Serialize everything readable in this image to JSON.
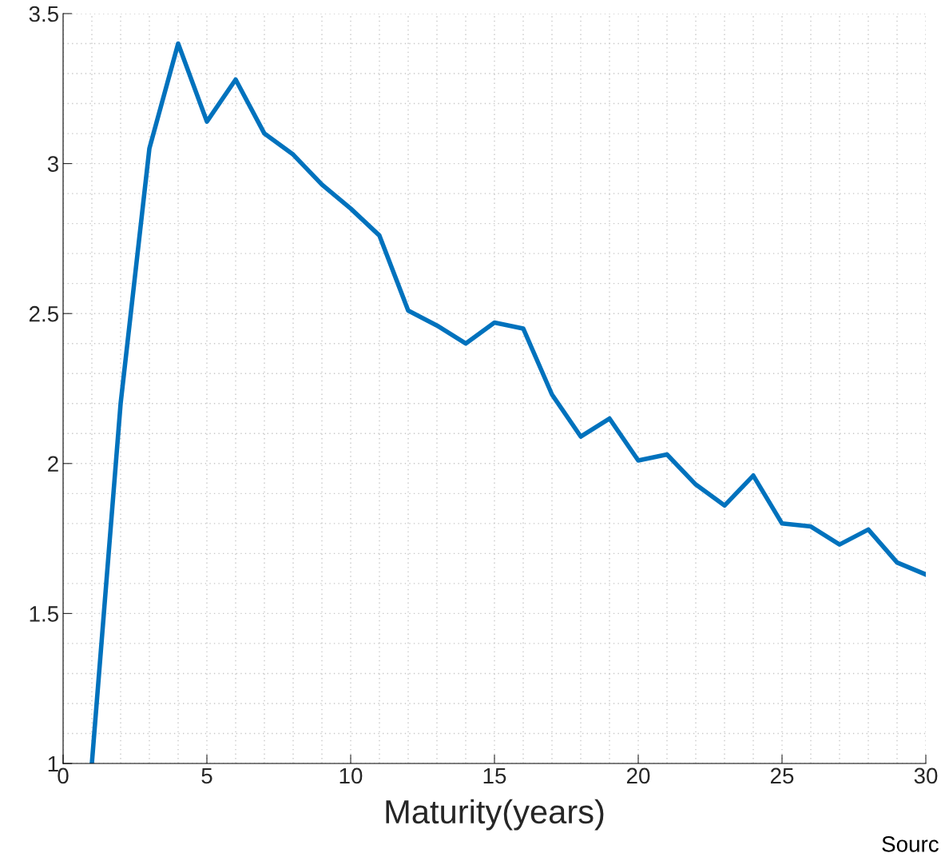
{
  "chart_data": {
    "type": "line",
    "xlabel": "Maturity(years)",
    "x": [
      1,
      2,
      3,
      4,
      5,
      6,
      7,
      8,
      9,
      10,
      11,
      12,
      13,
      14,
      15,
      16,
      17,
      18,
      19,
      20,
      21,
      22,
      23,
      24,
      25,
      26,
      27,
      28,
      29,
      30
    ],
    "series": [
      {
        "color": "#0072bd",
        "values": [
          1.0,
          2.2,
          3.05,
          3.4,
          3.14,
          3.28,
          3.1,
          3.03,
          2.93,
          2.85,
          2.76,
          2.51,
          2.46,
          2.4,
          2.47,
          2.45,
          2.23,
          2.09,
          2.15,
          2.01,
          2.03,
          1.93,
          1.86,
          1.96,
          1.8,
          1.79,
          1.73,
          1.78,
          1.67,
          1.63
        ]
      }
    ],
    "xlim": [
      0,
      30
    ],
    "xticks": [
      0,
      5,
      10,
      15,
      20,
      25,
      30
    ],
    "ylim": [
      1,
      3.5
    ],
    "yticks": [
      1,
      1.5,
      2,
      2.5,
      3,
      3.5
    ],
    "grid": true,
    "marker": "none",
    "line_style": "solid",
    "legend": false,
    "annotations": [
      "Sourc"
    ]
  }
}
